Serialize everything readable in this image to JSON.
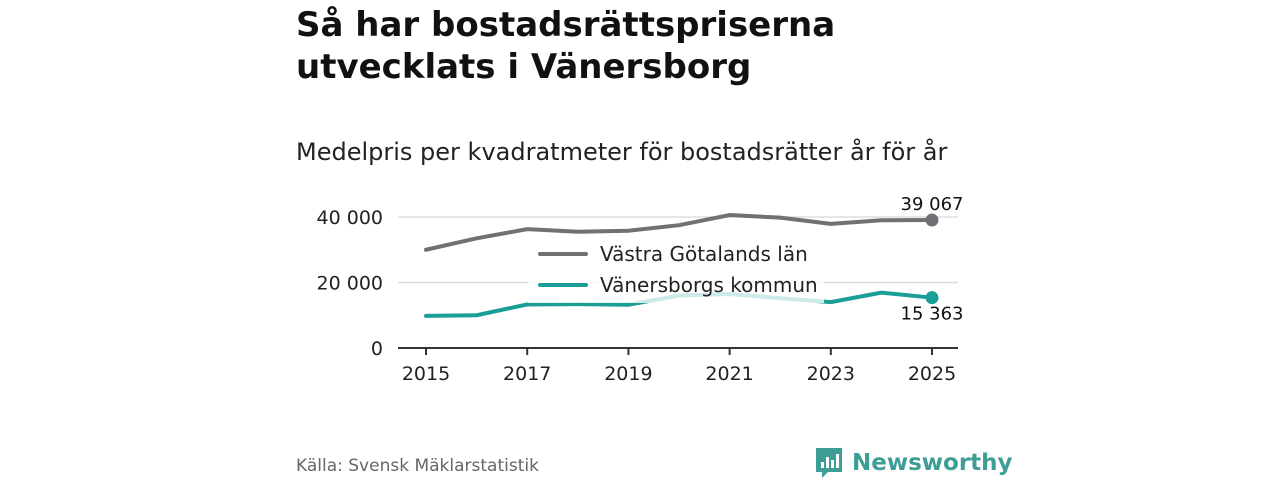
{
  "header": {
    "title": "Så har bostadsrättspriserna utvecklats i Vänersborg",
    "subtitle": "Medelpris per kvadratmeter för bostadsrätter år för år"
  },
  "footer": {
    "source": "Källa: Svensk Mäklarstatistik",
    "brand": "Newsworthy"
  },
  "colors": {
    "region": "#707075",
    "municipality": "#1a9e96",
    "municipality_light": "#cdeae8",
    "grid": "#dddddd",
    "axis": "#333333",
    "brand": "#3d9e95"
  },
  "chart_data": {
    "type": "line",
    "title": "Medelpris per kvadratmeter för bostadsrätter år för år",
    "x": [
      2015,
      2016,
      2017,
      2018,
      2019,
      2020,
      2021,
      2022,
      2023,
      2024,
      2025
    ],
    "xticks": [
      "2015",
      "2017",
      "2019",
      "2021",
      "2023",
      "2025"
    ],
    "yticks": [
      "0",
      "20 000",
      "40 000"
    ],
    "ylim": [
      0,
      45000
    ],
    "legend_position": "center",
    "series": [
      {
        "name": "Västra Götalands län",
        "values": [
          30000,
          33500,
          36300,
          35500,
          35800,
          37500,
          40600,
          39800,
          37900,
          39000,
          39067
        ],
        "end_label": "39 067"
      },
      {
        "name": "Vänersborgs kommun",
        "values": [
          9800,
          10000,
          13300,
          13400,
          13200,
          16000,
          16500,
          15200,
          14000,
          16900,
          15363
        ],
        "end_label": "15 363"
      }
    ]
  }
}
